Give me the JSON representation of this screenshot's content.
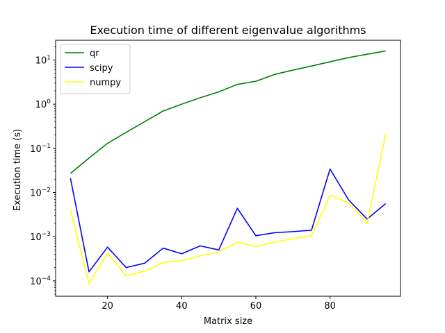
{
  "chart_data": {
    "type": "line",
    "title": "Execution time of different eigenvalue algorithms",
    "xlabel": "Matrix size",
    "ylabel": "Execution time (s)",
    "xlim": [
      6,
      99
    ],
    "ylim": [
      4.48e-05,
      28
    ],
    "yscale": "log",
    "grid": false,
    "legend_position": "top-left",
    "x_ticks": [
      20,
      40,
      60,
      80
    ],
    "y_ticks": [
      {
        "value": 0.0001,
        "base": "10",
        "exp": "−4"
      },
      {
        "value": 0.001,
        "base": "10",
        "exp": "−3"
      },
      {
        "value": 0.01,
        "base": "10",
        "exp": "−2"
      },
      {
        "value": 0.1,
        "base": "10",
        "exp": "−1"
      },
      {
        "value": 1,
        "base": "10",
        "exp": "0"
      },
      {
        "value": 10,
        "base": "10",
        "exp": "1"
      }
    ],
    "x": [
      10,
      15,
      20,
      25,
      30,
      35,
      40,
      45,
      50,
      55,
      60,
      65,
      70,
      75,
      80,
      85,
      90,
      95
    ],
    "series": [
      {
        "name": "qr",
        "color": "#008000",
        "values": [
          0.027,
          0.06,
          0.13,
          0.23,
          0.4,
          0.7,
          1.0,
          1.4,
          1.9,
          2.8,
          3.3,
          4.7,
          5.9,
          7.3,
          9.1,
          11.3,
          13.5,
          16.0
        ]
      },
      {
        "name": "scipy",
        "color": "#0000ff",
        "values": [
          0.021,
          0.00016,
          0.00058,
          0.0002,
          0.00025,
          0.00055,
          0.00041,
          0.00062,
          0.0005,
          0.0044,
          0.00105,
          0.00123,
          0.0013,
          0.0014,
          0.034,
          0.0068,
          0.0025,
          0.0056
        ]
      },
      {
        "name": "numpy",
        "color": "#ffff00",
        "values": [
          0.004,
          8.7e-05,
          0.00042,
          0.00013,
          0.000165,
          0.00026,
          0.00029,
          0.00037,
          0.00045,
          0.00075,
          0.0006,
          0.00075,
          0.0009,
          0.00105,
          0.0086,
          0.0059,
          0.002,
          0.21
        ]
      }
    ]
  }
}
